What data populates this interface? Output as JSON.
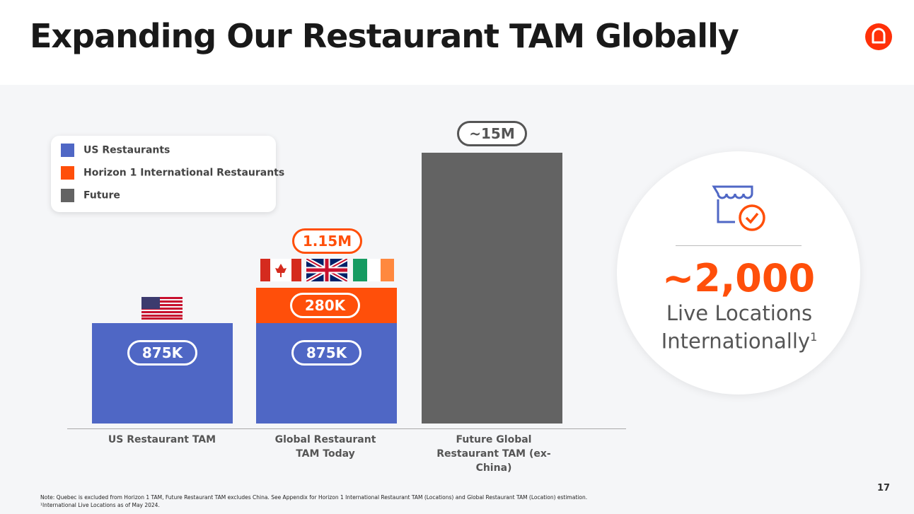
{
  "header": {
    "title": "Expanding Our Restaurant TAM Globally"
  },
  "legend": [
    "US Restaurants",
    "Horizon 1 International Restaurants",
    "Future"
  ],
  "bars": [
    {
      "label": "US Restaurant TAM",
      "segments": [
        "875K"
      ]
    },
    {
      "label": "Global Restaurant TAM Today",
      "segments": [
        "875K",
        "280K"
      ],
      "total": "1.15M"
    },
    {
      "label": "Future Global Restaurant TAM (ex-China)",
      "total": "~15M"
    }
  ],
  "callout": {
    "value": "~2,000",
    "text": "Live Locations Internationally",
    "superscript": "1"
  },
  "footnotes": [
    "Note: Quebec is excluded from Horizon 1 TAM, Future Restaurant TAM excludes China. See Appendix for Horizon 1 International Restaurant TAM (Locations) and Global Restaurant TAM (Location) estimation.",
    "¹International Live Locations as of May 2024."
  ],
  "page_number": "17"
}
